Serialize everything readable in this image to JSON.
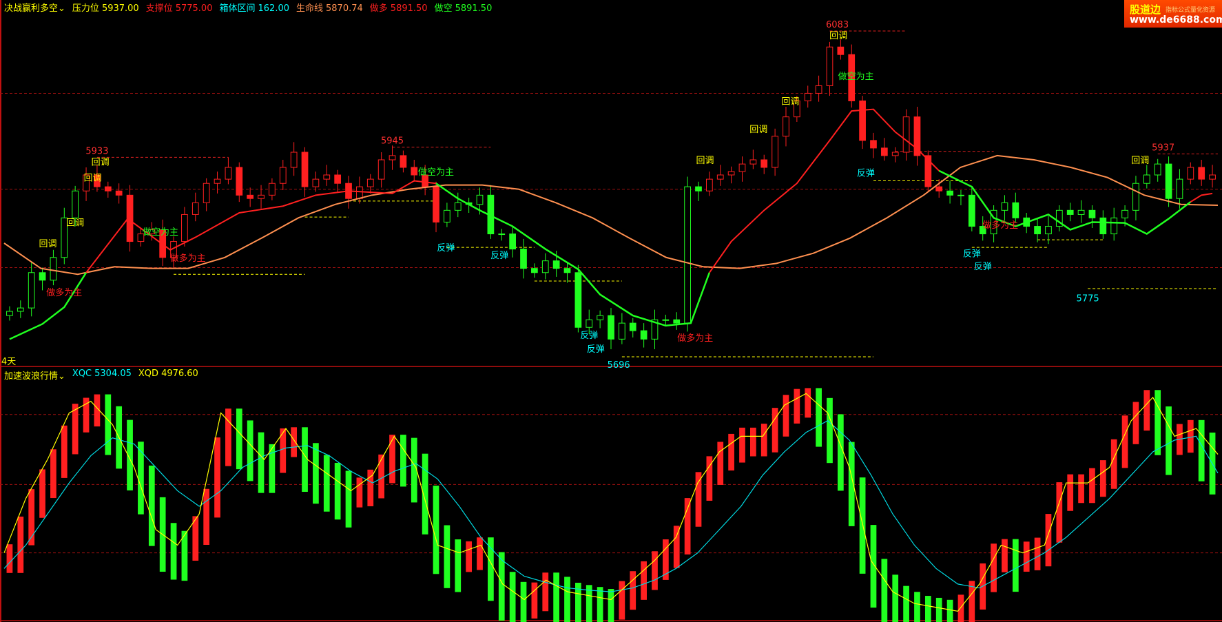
{
  "header": {
    "indicator_name": "决战赢利多空",
    "items": [
      {
        "label": "压力位",
        "value": "5937.00",
        "color": "#ffff00"
      },
      {
        "label": "支撑位",
        "value": "5775.00",
        "color": "#ff2020"
      },
      {
        "label": "箱体区间",
        "value": "162.00",
        "color": "#00ffff"
      },
      {
        "label": "生命线",
        "value": "5870.74",
        "color": "#ff9050"
      },
      {
        "label": "做多",
        "value": "5891.50",
        "color": "#ff2020"
      },
      {
        "label": "做空",
        "value": "5891.50",
        "color": "#20ff20"
      }
    ]
  },
  "period_label": "4天",
  "sub_header": {
    "indicator_name": "加速波浪行情",
    "items": [
      {
        "label": "XQC",
        "value": "5304.05",
        "color": "#00ffff"
      },
      {
        "label": "XQD",
        "value": "4976.60",
        "color": "#ffff00"
      }
    ]
  },
  "logo": {
    "brand": "股道边",
    "slogan": "指标公式量化资源",
    "site": "www.de6688.com"
  },
  "colors": {
    "bull": "#ff2020",
    "bear": "#20ff20",
    "lifeline": "#ff9050",
    "xqc": "#ffff00",
    "xqd": "#00d8e0",
    "grid": "#a01010",
    "support": "#ffff00"
  },
  "chart_data": [
    {
      "type": "candlestick",
      "panel": "main",
      "ylim": [
        5696,
        6083
      ],
      "close": [
        5750,
        5754,
        5796,
        5787,
        5814,
        5861,
        5893,
        5912,
        5898,
        5893,
        5888,
        5833,
        5842,
        5847,
        5814,
        5833,
        5865,
        5879,
        5902,
        5907,
        5921,
        5888,
        5884,
        5888,
        5902,
        5921,
        5939,
        5898,
        5907,
        5912,
        5902,
        5884,
        5898,
        5907,
        5930,
        5935,
        5921,
        5912,
        5898,
        5856,
        5870,
        5879,
        5877,
        5888,
        5842,
        5842,
        5824,
        5801,
        5796,
        5810,
        5801,
        5796,
        5731,
        5740,
        5745,
        5717,
        5736,
        5727,
        5717,
        5740,
        5740,
        5736,
        5898,
        5893,
        5907,
        5912,
        5916,
        5925,
        5930,
        5921,
        5958,
        5981,
        6000,
        6009,
        6018,
        6064,
        6055,
        6000,
        5953,
        5944,
        5935,
        5939,
        5981,
        5935,
        5898,
        5893,
        5888,
        5888,
        5851,
        5842,
        5870,
        5879,
        5861,
        5851,
        5842,
        5851,
        5870,
        5865,
        5870,
        5861,
        5842,
        5861,
        5870,
        5902,
        5912,
        5925,
        5884,
        5907,
        5921,
        5907,
        5912
      ],
      "lifeline": [
        5831,
        5801,
        5794,
        5803,
        5801,
        5801,
        5814,
        5837,
        5861,
        5877,
        5888,
        5895,
        5900,
        5900,
        5895,
        5879,
        5861,
        5837,
        5814,
        5803,
        5801,
        5807,
        5819,
        5837,
        5861,
        5888,
        5921,
        5935,
        5930,
        5921,
        5909,
        5888,
        5877,
        5876
      ],
      "trend_bull": [
        [
          [
            7,
            5796
          ],
          [
            10.8,
            5860
          ],
          [
            14.7,
            5823
          ],
          [
            17,
            5838
          ],
          [
            21,
            5867
          ],
          [
            25,
            5875
          ],
          [
            28,
            5888
          ],
          [
            31,
            5893
          ],
          [
            35,
            5890
          ],
          [
            37,
            5905
          ],
          [
            39,
            5902
          ]
        ],
        [
          [
            64,
            5796
          ],
          [
            66,
            5833
          ],
          [
            69,
            5870
          ],
          [
            72,
            5902
          ],
          [
            75,
            5953
          ],
          [
            77,
            5988
          ],
          [
            79,
            5990
          ],
          [
            81,
            5963
          ],
          [
            83,
            5943
          ],
          [
            85,
            5917
          ]
        ],
        [
          [
            108,
            5880
          ],
          [
            109,
            5888
          ],
          [
            110,
            5890
          ]
        ]
      ],
      "trend_bear": [
        [
          [
            0,
            5717
          ],
          [
            3,
            5735
          ],
          [
            5,
            5755
          ],
          [
            7,
            5796
          ]
        ],
        [
          [
            39,
            5902
          ],
          [
            41,
            5884
          ],
          [
            43,
            5870
          ],
          [
            46,
            5851
          ],
          [
            49,
            5824
          ],
          [
            52,
            5800
          ],
          [
            54,
            5770
          ],
          [
            57,
            5745
          ],
          [
            60,
            5733
          ],
          [
            62.3,
            5736
          ],
          [
            64,
            5796
          ]
        ],
        [
          [
            85,
            5917
          ],
          [
            88,
            5898
          ],
          [
            90,
            5861
          ],
          [
            92,
            5851
          ],
          [
            95,
            5865
          ],
          [
            97,
            5847
          ],
          [
            99,
            5856
          ],
          [
            102,
            5855
          ],
          [
            104,
            5842
          ],
          [
            106,
            5860
          ],
          [
            108,
            5880
          ]
        ]
      ],
      "gridlines": [
        6009,
        5895,
        5802
      ],
      "resistance_lines": [
        {
          "price": 5933,
          "from": 8,
          "to": 20
        },
        {
          "price": 5945,
          "from": 35,
          "to": 44
        },
        {
          "price": 6083,
          "from": 75,
          "to": 82
        },
        {
          "price": 5940,
          "from": 81,
          "to": 90
        },
        {
          "price": 5937,
          "from": 105,
          "to": 110.5
        }
      ],
      "support_lines": [
        {
          "price": 5794,
          "from": 15,
          "to": 27
        },
        {
          "price": 5862,
          "from": 27,
          "to": 31
        },
        {
          "price": 5881,
          "from": 31,
          "to": 39
        },
        {
          "price": 5826,
          "from": 40,
          "to": 48
        },
        {
          "price": 5786,
          "from": 48,
          "to": 56
        },
        {
          "price": 5696,
          "from": 56,
          "to": 79
        },
        {
          "price": 5905,
          "from": 79,
          "to": 88
        },
        {
          "price": 5826,
          "from": 88,
          "to": 95
        },
        {
          "price": 5835,
          "from": 94,
          "to": 100
        },
        {
          "price": 5777,
          "from": 98.6,
          "to": 110.5
        }
      ],
      "price_labels": [
        {
          "index": 8,
          "price": 5933,
          "text": "5933",
          "color": "#ff3030",
          "pos": "above"
        },
        {
          "index": 35,
          "price": 5945,
          "text": "5945",
          "color": "#ff3030",
          "pos": "above"
        },
        {
          "index": 75.7,
          "price": 6083,
          "text": "6083",
          "color": "#ff3030",
          "pos": "above"
        },
        {
          "index": 105.5,
          "price": 5937,
          "text": "5937",
          "color": "#ff3030",
          "pos": "above"
        },
        {
          "index": 98.6,
          "price": 5775,
          "text": "5775",
          "color": "#00ffff",
          "pos": "below"
        },
        {
          "index": 55.7,
          "price": 5696,
          "text": "5696",
          "color": "#00ffff",
          "pos": "below"
        }
      ],
      "annotations": [
        {
          "index": 3.5,
          "price": 5831,
          "text": "回调",
          "color": "#ffff00"
        },
        {
          "index": 6,
          "price": 5856,
          "text": "回调",
          "color": "#ffff00"
        },
        {
          "index": 7.6,
          "price": 5909,
          "text": "回调",
          "color": "#ffff00"
        },
        {
          "index": 8.3,
          "price": 5938,
          "text": "回调",
          "color": "#ffff00"
        },
        {
          "index": 63.6,
          "price": 5930,
          "text": "回调",
          "color": "#ffff00"
        },
        {
          "index": 68.5,
          "price": 5967,
          "text": "回调",
          "color": "#ffff00"
        },
        {
          "index": 71.4,
          "price": 6000,
          "text": "回调",
          "color": "#ffff00"
        },
        {
          "index": 75.8,
          "price": 6087,
          "text": "回调",
          "color": "#ffff00"
        },
        {
          "index": 103.4,
          "price": 5930,
          "text": "回调",
          "color": "#ffff00"
        },
        {
          "index": 39.9,
          "price": 5826,
          "text": "反弹",
          "color": "#00ffff"
        },
        {
          "index": 44.8,
          "price": 5817,
          "text": "反弹",
          "color": "#00ffff"
        },
        {
          "index": 53,
          "price": 5722,
          "text": "反弹",
          "color": "#00ffff"
        },
        {
          "index": 53.6,
          "price": 5706,
          "text": "反弹",
          "color": "#00ffff"
        },
        {
          "index": 78.3,
          "price": 5915,
          "text": "反弹",
          "color": "#00ffff"
        },
        {
          "index": 88,
          "price": 5819,
          "text": "反弹",
          "color": "#00ffff"
        },
        {
          "index": 89,
          "price": 5804,
          "text": "反弹",
          "color": "#00ffff"
        },
        {
          "index": 5,
          "price": 5773,
          "text": "做多为主",
          "color": "#ff2020"
        },
        {
          "index": 16.3,
          "price": 5814,
          "text": "做多为主",
          "color": "#ff2020"
        },
        {
          "index": 62.7,
          "price": 5719,
          "text": "做多为主",
          "color": "#ff2020"
        },
        {
          "index": 90.6,
          "price": 5853,
          "text": "做多为主",
          "color": "#ff2020"
        },
        {
          "index": 13.8,
          "price": 5845,
          "text": "做空为主",
          "color": "#20ff20"
        },
        {
          "index": 39,
          "price": 5916,
          "text": "做空为主",
          "color": "#20ff20"
        },
        {
          "index": 77.4,
          "price": 6030,
          "text": "做空为主",
          "color": "#20ff20"
        }
      ]
    },
    {
      "type": "line",
      "panel": "sub",
      "ylim": [
        2500,
        6500
      ],
      "gridlines": [
        5998,
        4778,
        3585
      ],
      "series": [
        {
          "name": "XQC",
          "values": [
            3585,
            4534,
            5212,
            6025,
            6229,
            5822,
            5076,
            3991,
            3720,
            4263,
            6025,
            5619,
            5212,
            5754,
            5212,
            4941,
            4669,
            4941,
            5619,
            5076,
            3720,
            3585,
            3720,
            3042,
            2771,
            3110,
            2907,
            2839,
            2771,
            3110,
            3449,
            3856,
            4805,
            5347,
            5619,
            5619,
            6161,
            6364,
            6025,
            5076,
            3449,
            2907,
            2703,
            2635,
            2568,
            3042,
            3720,
            3585,
            3720,
            4805,
            4805,
            5076,
            5890,
            6297,
            5619,
            5754,
            5304.05
          ]
        },
        {
          "name": "XQD",
          "values": [
            3313,
            3720,
            4263,
            4805,
            5280,
            5591,
            5483,
            5076,
            4669,
            4398,
            4669,
            5076,
            5280,
            5415,
            5456,
            5280,
            5008,
            4805,
            5008,
            5144,
            4873,
            4398,
            3856,
            3449,
            3178,
            3069,
            2974,
            2934,
            2907,
            2974,
            3110,
            3313,
            3585,
            3991,
            4398,
            4941,
            5347,
            5686,
            5890,
            5551,
            4941,
            4263,
            3720,
            3313,
            3042,
            2974,
            3178,
            3381,
            3585,
            3856,
            4195,
            4534,
            4941,
            5347,
            5551,
            5619,
            4976.6
          ]
        }
      ]
    }
  ]
}
